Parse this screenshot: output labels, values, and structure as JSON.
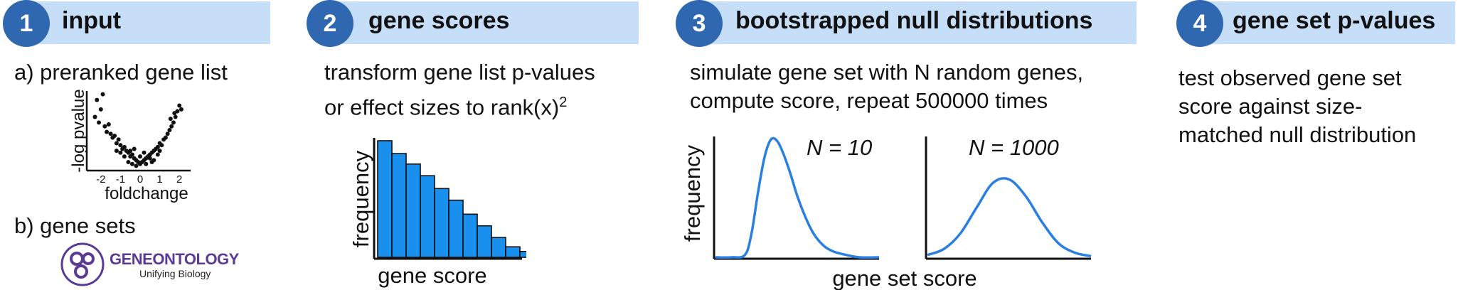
{
  "colors": {
    "step_bar": "#c6def8",
    "step_circle": "#2f68b0",
    "bar_fill": "#1a90ee",
    "curve": "#2a7fe0"
  },
  "steps": [
    {
      "number": "1",
      "title": "input"
    },
    {
      "number": "2",
      "title": "gene scores"
    },
    {
      "number": "3",
      "title": "bootstrapped null distributions"
    },
    {
      "number": "4",
      "title": "gene set p-values"
    }
  ],
  "panel1": {
    "a_label": "a) preranked gene list",
    "b_label": "b) gene sets",
    "logo_name": "GENEONTOLOGY",
    "logo_tagline": "Unifying Biology"
  },
  "panel2": {
    "line1": "transform gene list p-values",
    "line2_prefix": "or effect sizes to rank(x)",
    "line2_sup": "2"
  },
  "panel3": {
    "line1": "simulate gene set with N random genes,",
    "line2": "compute score, repeat 500000 times"
  },
  "panel4": {
    "line1": "test observed gene set",
    "line2": "score against size-",
    "line3": "matched null distribution"
  },
  "chart_data": [
    {
      "type": "scatter",
      "xlabel": "foldchange",
      "ylabel": "-log pvalue",
      "xticks": [
        "-2",
        "-1",
        "0",
        "1",
        "2"
      ],
      "xlim": [
        -2.5,
        2.5
      ],
      "points": [
        [
          -2.2,
          3.6
        ],
        [
          -2.0,
          3.1
        ],
        [
          -1.9,
          3.9
        ],
        [
          -2.3,
          2.7
        ],
        [
          -2.1,
          2.4
        ],
        [
          -1.8,
          2.2
        ],
        [
          -1.6,
          2.3
        ],
        [
          -1.7,
          1.9
        ],
        [
          -1.5,
          1.8
        ],
        [
          -1.4,
          1.6
        ],
        [
          -1.3,
          1.7
        ],
        [
          -1.2,
          1.3
        ],
        [
          -1.1,
          1.5
        ],
        [
          -1.0,
          1.2
        ],
        [
          -0.9,
          1.0
        ],
        [
          -0.8,
          1.1
        ],
        [
          -0.7,
          0.9
        ],
        [
          -0.6,
          0.8
        ],
        [
          -0.5,
          0.6
        ],
        [
          -0.4,
          0.7
        ],
        [
          -0.3,
          0.5
        ],
        [
          -0.2,
          0.4
        ],
        [
          -0.1,
          0.3
        ],
        [
          0.0,
          0.2
        ],
        [
          0.1,
          0.3
        ],
        [
          0.2,
          0.4
        ],
        [
          0.3,
          0.5
        ],
        [
          0.4,
          0.6
        ],
        [
          0.5,
          0.7
        ],
        [
          0.6,
          0.8
        ],
        [
          0.7,
          0.9
        ],
        [
          0.8,
          1.0
        ],
        [
          0.9,
          1.1
        ],
        [
          1.0,
          1.3
        ],
        [
          1.1,
          1.2
        ],
        [
          1.2,
          1.5
        ],
        [
          1.3,
          1.6
        ],
        [
          1.4,
          1.8
        ],
        [
          1.5,
          2.0
        ],
        [
          1.6,
          2.2
        ],
        [
          1.7,
          2.4
        ],
        [
          1.8,
          2.7
        ],
        [
          1.9,
          3.0
        ],
        [
          2.0,
          3.3
        ],
        [
          2.1,
          3.1
        ],
        [
          1.75,
          2.9
        ],
        [
          1.55,
          2.6
        ],
        [
          -0.8,
          0.6
        ],
        [
          -0.5,
          0.9
        ],
        [
          -0.3,
          1.0
        ],
        [
          0.2,
          0.8
        ],
        [
          0.5,
          0.5
        ],
        [
          0.7,
          0.4
        ],
        [
          -0.6,
          0.3
        ],
        [
          -1.0,
          0.8
        ],
        [
          -0.2,
          0.1
        ],
        [
          0.3,
          0.2
        ],
        [
          0.9,
          0.7
        ],
        [
          1.0,
          0.9
        ],
        [
          -1.2,
          0.9
        ],
        [
          0.0,
          0.6
        ],
        [
          -0.4,
          0.2
        ],
        [
          0.6,
          0.3
        ]
      ]
    },
    {
      "type": "bar",
      "xlabel": "gene score",
      "ylabel": "frequency",
      "values": [
        100,
        89,
        80,
        70,
        59,
        49,
        37,
        27,
        17,
        9,
        5
      ]
    },
    {
      "type": "line",
      "title": "N = 10",
      "xlabel": "gene set score",
      "ylabel": "frequency",
      "xlim": [
        0,
        1
      ],
      "ylim": [
        0,
        1
      ],
      "x": [
        0.0,
        0.1,
        0.18,
        0.22,
        0.26,
        0.3,
        0.34,
        0.38,
        0.42,
        0.46,
        0.5,
        0.55,
        0.6,
        0.66,
        0.72,
        0.8,
        0.88,
        1.0
      ],
      "y": [
        0.0,
        0.0,
        0.02,
        0.2,
        0.55,
        0.85,
        1.0,
        0.98,
        0.86,
        0.7,
        0.52,
        0.34,
        0.2,
        0.1,
        0.05,
        0.02,
        0.0,
        0.0
      ]
    },
    {
      "type": "line",
      "title": "N = 1000",
      "xlabel": "gene set score",
      "ylim": [
        0,
        1
      ],
      "xlim": [
        0,
        1
      ],
      "x": [
        0.0,
        0.1,
        0.2,
        0.3,
        0.4,
        0.5,
        0.6,
        0.7,
        0.8,
        0.9,
        1.0
      ],
      "y": [
        0.02,
        0.07,
        0.2,
        0.42,
        0.63,
        0.66,
        0.52,
        0.3,
        0.12,
        0.04,
        0.01
      ]
    }
  ]
}
